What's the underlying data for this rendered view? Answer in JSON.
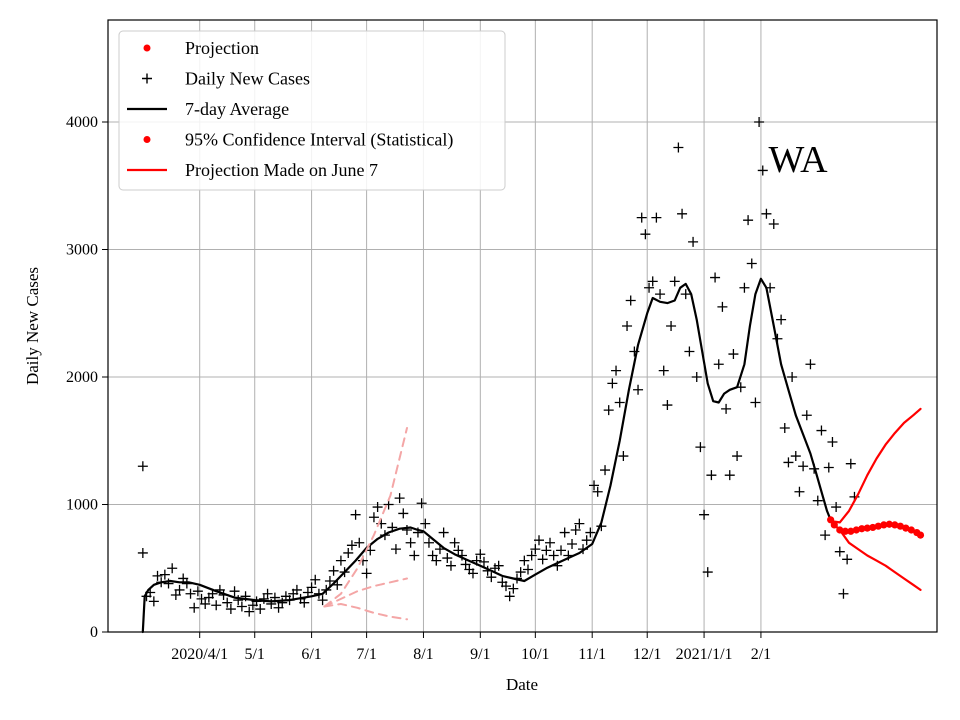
{
  "chart_data": {
    "type": "line",
    "title": "",
    "state_label": "WA",
    "xlabel": "Date",
    "ylabel": "Daily New Cases",
    "x_ticks": [
      {
        "day": 31,
        "label": "2020/4/1"
      },
      {
        "day": 61,
        "label": "5/1"
      },
      {
        "day": 92,
        "label": "6/1"
      },
      {
        "day": 122,
        "label": "7/1"
      },
      {
        "day": 153,
        "label": "8/1"
      },
      {
        "day": 184,
        "label": "9/1"
      },
      {
        "day": 214,
        "label": "10/1"
      },
      {
        "day": 245,
        "label": "11/1"
      },
      {
        "day": 275,
        "label": "12/1"
      },
      {
        "day": 306,
        "label": "2021/1/1"
      },
      {
        "day": 337,
        "label": "2/1"
      }
    ],
    "y_ticks": [
      0,
      1000,
      2000,
      3000,
      4000
    ],
    "xlim": [
      -19,
      433
    ],
    "ylim": [
      0,
      4800
    ],
    "grid": true,
    "legend_position": "top-left",
    "legend": [
      {
        "label": "Projection",
        "kind": "dot",
        "color": "#ff0000"
      },
      {
        "label": "Daily New Cases",
        "kind": "plus",
        "color": "#000000"
      },
      {
        "label": "7-day Average",
        "kind": "line",
        "color": "#000000"
      },
      {
        "label": "95% Confidence Interval (Statistical)",
        "kind": "dot",
        "color": "#ff0000"
      },
      {
        "label": "Projection Made on June 7",
        "kind": "line",
        "color": "#ff0000"
      }
    ],
    "series": [
      {
        "name": "7-day Average",
        "color": "#000000",
        "points": [
          [
            0,
            0
          ],
          [
            1,
            280
          ],
          [
            3,
            330
          ],
          [
            6,
            370
          ],
          [
            10,
            390
          ],
          [
            15,
            400
          ],
          [
            20,
            390
          ],
          [
            25,
            390
          ],
          [
            31,
            370
          ],
          [
            40,
            320
          ],
          [
            50,
            270
          ],
          [
            61,
            250
          ],
          [
            70,
            240
          ],
          [
            80,
            250
          ],
          [
            92,
            280
          ],
          [
            98,
            300
          ],
          [
            104,
            380
          ],
          [
            110,
            470
          ],
          [
            116,
            560
          ],
          [
            122,
            660
          ],
          [
            128,
            730
          ],
          [
            134,
            780
          ],
          [
            140,
            810
          ],
          [
            146,
            820
          ],
          [
            150,
            800
          ],
          [
            153,
            790
          ],
          [
            158,
            730
          ],
          [
            164,
            660
          ],
          [
            170,
            610
          ],
          [
            176,
            570
          ],
          [
            184,
            520
          ],
          [
            190,
            480
          ],
          [
            196,
            440
          ],
          [
            202,
            420
          ],
          [
            208,
            400
          ],
          [
            214,
            450
          ],
          [
            220,
            500
          ],
          [
            226,
            540
          ],
          [
            232,
            580
          ],
          [
            238,
            620
          ],
          [
            245,
            690
          ],
          [
            250,
            860
          ],
          [
            255,
            1150
          ],
          [
            260,
            1500
          ],
          [
            265,
            1900
          ],
          [
            270,
            2250
          ],
          [
            275,
            2500
          ],
          [
            278,
            2620
          ],
          [
            282,
            2590
          ],
          [
            286,
            2580
          ],
          [
            290,
            2600
          ],
          [
            293,
            2700
          ],
          [
            296,
            2730
          ],
          [
            299,
            2650
          ],
          [
            302,
            2450
          ],
          [
            305,
            2200
          ],
          [
            308,
            1950
          ],
          [
            311,
            1810
          ],
          [
            314,
            1800
          ],
          [
            317,
            1870
          ],
          [
            320,
            1900
          ],
          [
            324,
            1920
          ],
          [
            328,
            2100
          ],
          [
            331,
            2400
          ],
          [
            334,
            2650
          ],
          [
            337,
            2770
          ],
          [
            340,
            2700
          ],
          [
            344,
            2400
          ],
          [
            348,
            2100
          ],
          [
            352,
            1900
          ],
          [
            356,
            1700
          ],
          [
            360,
            1550
          ],
          [
            364,
            1400
          ],
          [
            367,
            1250
          ],
          [
            370,
            1100
          ],
          [
            373,
            950
          ],
          [
            375,
            880
          ]
        ]
      },
      {
        "name": "95% Confidence Interval upper",
        "color": "#ff0000",
        "points": [
          [
            375,
            870
          ],
          [
            380,
            860
          ],
          [
            385,
            950
          ],
          [
            390,
            1080
          ],
          [
            395,
            1230
          ],
          [
            400,
            1360
          ],
          [
            405,
            1470
          ],
          [
            410,
            1560
          ],
          [
            415,
            1640
          ],
          [
            420,
            1700
          ],
          [
            424,
            1750
          ]
        ]
      },
      {
        "name": "95% Confidence Interval lower",
        "color": "#ff0000",
        "points": [
          [
            375,
            870
          ],
          [
            380,
            800
          ],
          [
            385,
            700
          ],
          [
            390,
            650
          ],
          [
            395,
            600
          ],
          [
            400,
            560
          ],
          [
            405,
            520
          ],
          [
            410,
            470
          ],
          [
            415,
            420
          ],
          [
            420,
            370
          ],
          [
            424,
            330
          ]
        ]
      },
      {
        "name": "Projection",
        "color": "#ff0000",
        "points": [
          [
            375,
            880
          ],
          [
            377,
            840
          ],
          [
            380,
            800
          ],
          [
            383,
            790
          ],
          [
            386,
            790
          ],
          [
            389,
            800
          ],
          [
            392,
            810
          ],
          [
            395,
            815
          ],
          [
            398,
            820
          ],
          [
            401,
            830
          ],
          [
            404,
            840
          ],
          [
            407,
            845
          ],
          [
            410,
            840
          ],
          [
            413,
            830
          ],
          [
            416,
            815
          ],
          [
            419,
            800
          ],
          [
            422,
            780
          ],
          [
            424,
            760
          ]
        ]
      },
      {
        "name": "Projection Made on June 7 (median)",
        "color": "#f4a6a6",
        "dashed": true,
        "points": [
          [
            99,
            200
          ],
          [
            108,
            260
          ],
          [
            117,
            320
          ],
          [
            126,
            360
          ],
          [
            135,
            390
          ],
          [
            144,
            420
          ]
        ]
      },
      {
        "name": "Projection Made on June 7 (upper)",
        "color": "#f4a6a6",
        "dashed": true,
        "points": [
          [
            99,
            200
          ],
          [
            108,
            300
          ],
          [
            117,
            500
          ],
          [
            126,
            760
          ],
          [
            135,
            1070
          ],
          [
            144,
            1600
          ]
        ]
      },
      {
        "name": "Projection Made on June 7 (lower)",
        "color": "#f4a6a6",
        "dashed": true,
        "points": [
          [
            99,
            200
          ],
          [
            108,
            220
          ],
          [
            117,
            190
          ],
          [
            126,
            150
          ],
          [
            135,
            120
          ],
          [
            144,
            100
          ]
        ]
      }
    ],
    "daily_points": [
      [
        0,
        1300
      ],
      [
        0,
        620
      ],
      [
        2,
        280
      ],
      [
        4,
        310
      ],
      [
        6,
        240
      ],
      [
        8,
        440
      ],
      [
        10,
        390
      ],
      [
        12,
        450
      ],
      [
        14,
        380
      ],
      [
        16,
        500
      ],
      [
        18,
        290
      ],
      [
        20,
        330
      ],
      [
        22,
        420
      ],
      [
        24,
        380
      ],
      [
        26,
        300
      ],
      [
        28,
        190
      ],
      [
        30,
        320
      ],
      [
        32,
        260
      ],
      [
        34,
        220
      ],
      [
        36,
        270
      ],
      [
        38,
        300
      ],
      [
        40,
        210
      ],
      [
        42,
        330
      ],
      [
        44,
        290
      ],
      [
        46,
        230
      ],
      [
        48,
        180
      ],
      [
        50,
        320
      ],
      [
        52,
        250
      ],
      [
        54,
        200
      ],
      [
        56,
        280
      ],
      [
        58,
        160
      ],
      [
        60,
        210
      ],
      [
        62,
        240
      ],
      [
        64,
        180
      ],
      [
        66,
        260
      ],
      [
        68,
        300
      ],
      [
        70,
        220
      ],
      [
        72,
        270
      ],
      [
        74,
        190
      ],
      [
        76,
        230
      ],
      [
        78,
        280
      ],
      [
        80,
        250
      ],
      [
        82,
        300
      ],
      [
        84,
        330
      ],
      [
        86,
        260
      ],
      [
        88,
        230
      ],
      [
        90,
        310
      ],
      [
        92,
        350
      ],
      [
        94,
        410
      ],
      [
        96,
        300
      ],
      [
        98,
        250
      ],
      [
        100,
        330
      ],
      [
        102,
        400
      ],
      [
        104,
        480
      ],
      [
        106,
        370
      ],
      [
        108,
        560
      ],
      [
        110,
        470
      ],
      [
        112,
        620
      ],
      [
        114,
        680
      ],
      [
        116,
        920
      ],
      [
        118,
        700
      ],
      [
        120,
        560
      ],
      [
        122,
        460
      ],
      [
        124,
        640
      ],
      [
        126,
        900
      ],
      [
        128,
        980
      ],
      [
        130,
        850
      ],
      [
        132,
        760
      ],
      [
        134,
        1000
      ],
      [
        136,
        820
      ],
      [
        138,
        650
      ],
      [
        140,
        1050
      ],
      [
        142,
        930
      ],
      [
        144,
        800
      ],
      [
        146,
        700
      ],
      [
        148,
        600
      ],
      [
        150,
        780
      ],
      [
        152,
        1010
      ],
      [
        154,
        850
      ],
      [
        156,
        700
      ],
      [
        158,
        600
      ],
      [
        160,
        560
      ],
      [
        162,
        650
      ],
      [
        164,
        780
      ],
      [
        166,
        580
      ],
      [
        168,
        520
      ],
      [
        170,
        700
      ],
      [
        172,
        640
      ],
      [
        174,
        600
      ],
      [
        176,
        530
      ],
      [
        178,
        490
      ],
      [
        180,
        460
      ],
      [
        182,
        560
      ],
      [
        184,
        610
      ],
      [
        186,
        550
      ],
      [
        188,
        480
      ],
      [
        190,
        430
      ],
      [
        192,
        500
      ],
      [
        194,
        520
      ],
      [
        196,
        390
      ],
      [
        198,
        360
      ],
      [
        200,
        280
      ],
      [
        202,
        340
      ],
      [
        204,
        420
      ],
      [
        206,
        470
      ],
      [
        208,
        560
      ],
      [
        210,
        490
      ],
      [
        212,
        600
      ],
      [
        214,
        650
      ],
      [
        216,
        720
      ],
      [
        218,
        570
      ],
      [
        220,
        640
      ],
      [
        222,
        700
      ],
      [
        224,
        600
      ],
      [
        226,
        520
      ],
      [
        228,
        640
      ],
      [
        230,
        780
      ],
      [
        232,
        600
      ],
      [
        234,
        690
      ],
      [
        236,
        800
      ],
      [
        238,
        850
      ],
      [
        240,
        650
      ],
      [
        242,
        720
      ],
      [
        244,
        780
      ],
      [
        246,
        1150
      ],
      [
        248,
        1100
      ],
      [
        250,
        830
      ],
      [
        252,
        1270
      ],
      [
        254,
        1740
      ],
      [
        256,
        1950
      ],
      [
        258,
        2050
      ],
      [
        260,
        1800
      ],
      [
        262,
        1380
      ],
      [
        264,
        2400
      ],
      [
        266,
        2600
      ],
      [
        268,
        2200
      ],
      [
        270,
        1900
      ],
      [
        272,
        3250
      ],
      [
        274,
        3120
      ],
      [
        276,
        2700
      ],
      [
        278,
        2750
      ],
      [
        280,
        3250
      ],
      [
        282,
        2650
      ],
      [
        284,
        2050
      ],
      [
        286,
        1780
      ],
      [
        288,
        2400
      ],
      [
        290,
        2750
      ],
      [
        292,
        3800
      ],
      [
        294,
        3280
      ],
      [
        296,
        2650
      ],
      [
        298,
        2200
      ],
      [
        300,
        3060
      ],
      [
        302,
        2000
      ],
      [
        304,
        1450
      ],
      [
        306,
        920
      ],
      [
        308,
        470
      ],
      [
        310,
        1230
      ],
      [
        312,
        2780
      ],
      [
        314,
        2100
      ],
      [
        316,
        2550
      ],
      [
        318,
        1750
      ],
      [
        320,
        1230
      ],
      [
        322,
        2180
      ],
      [
        324,
        1380
      ],
      [
        326,
        1920
      ],
      [
        328,
        2700
      ],
      [
        330,
        3230
      ],
      [
        332,
        2890
      ],
      [
        334,
        1800
      ],
      [
        336,
        4000
      ],
      [
        338,
        3620
      ],
      [
        340,
        3280
      ],
      [
        342,
        2700
      ],
      [
        344,
        3200
      ],
      [
        346,
        2300
      ],
      [
        348,
        2450
      ],
      [
        350,
        1600
      ],
      [
        352,
        1330
      ],
      [
        354,
        2000
      ],
      [
        356,
        1380
      ],
      [
        358,
        1100
      ],
      [
        360,
        1300
      ],
      [
        362,
        1700
      ],
      [
        364,
        2100
      ],
      [
        366,
        1280
      ],
      [
        368,
        1030
      ],
      [
        370,
        1580
      ],
      [
        372,
        760
      ],
      [
        374,
        1290
      ],
      [
        376,
        1490
      ],
      [
        378,
        980
      ],
      [
        380,
        630
      ],
      [
        382,
        300
      ],
      [
        384,
        570
      ],
      [
        386,
        1320
      ],
      [
        388,
        1060
      ]
    ]
  }
}
